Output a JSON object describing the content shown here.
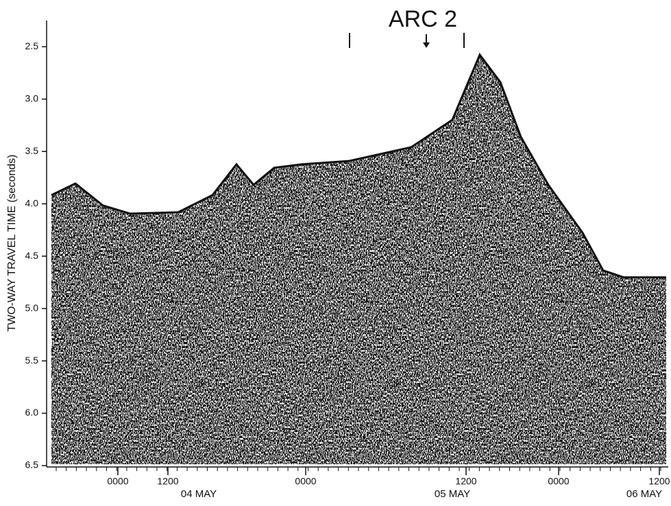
{
  "chart_data": {
    "type": "seismic-profile",
    "title": "ARC 2",
    "y_label": "TWO-WAY TRAVEL TIME (seconds)",
    "ylim": [
      2.25,
      6.5
    ],
    "y_inverted": true,
    "yticks": [
      {
        "value": 2.5,
        "label": "2.5"
      },
      {
        "value": 3,
        "label": "3.0"
      },
      {
        "value": 3.5,
        "label": "3.5"
      },
      {
        "value": 4,
        "label": "4.0"
      },
      {
        "value": 4.5,
        "label": "4.5"
      },
      {
        "value": 5,
        "label": "5.0"
      },
      {
        "value": 5.5,
        "label": "5.5"
      },
      {
        "value": 6,
        "label": "6.0"
      },
      {
        "value": 6.5,
        "label": "6.5"
      }
    ],
    "x_tick_labels": [
      "0000",
      "1200",
      "0000",
      "1200",
      "0000",
      "1200"
    ],
    "date_labels": [
      "04 MAY",
      "05 MAY",
      "06 MAY"
    ]
  }
}
